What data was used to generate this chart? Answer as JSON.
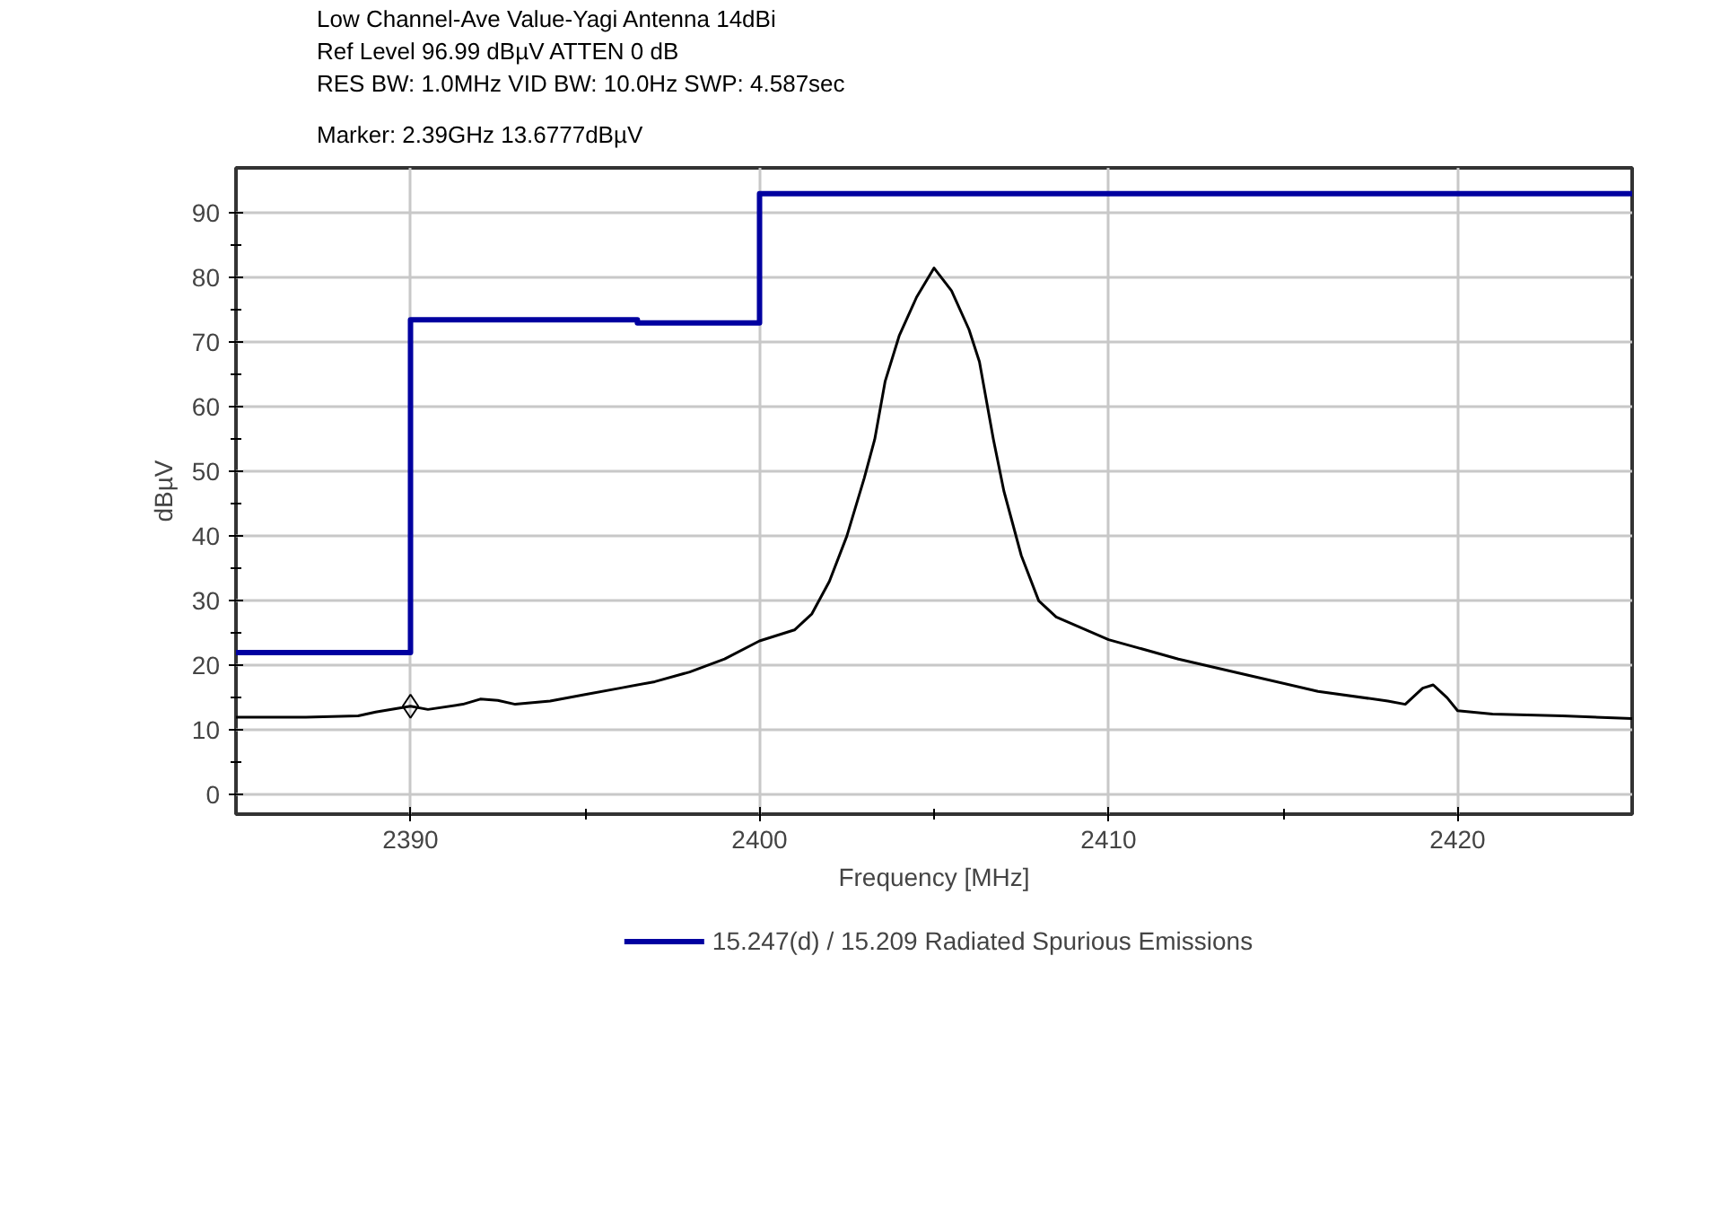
{
  "chart_data": {
    "type": "line",
    "title": "Low Channel-Ave Value-Yagi Antenna 14dBi",
    "annotations": [
      "Ref Level 96.99 dBµV    ATTEN 0 dB",
      "RES BW: 1.0MHz  VID BW: 10.0Hz  SWP: 4.587sec",
      "Marker: 2.39GHz  13.6777dBµV"
    ],
    "xlabel": "Frequency [MHz]",
    "ylabel": "dBµV",
    "xlim": [
      2385,
      2425
    ],
    "ylim": [
      -3,
      97
    ],
    "xticks": [
      2390,
      2400,
      2410,
      2420
    ],
    "yticks": [
      0,
      10,
      20,
      30,
      40,
      50,
      60,
      70,
      80,
      90
    ],
    "grid": true,
    "legend": "bottom",
    "series": [
      {
        "name": "15.247(d) / 15.209 Radiated Spurious Emissions",
        "type": "step",
        "color": "#0000a0",
        "x": [
          2385,
          2390,
          2396.5,
          2400,
          2425
        ],
        "values": [
          22,
          73.5,
          73,
          93,
          93
        ]
      },
      {
        "color": "#000000",
        "x": [
          2385,
          2387,
          2388.5,
          2389,
          2390,
          2390.5,
          2391.5,
          2392,
          2392.5,
          2393,
          2394,
          2395,
          2396,
          2397,
          2398,
          2399,
          2400,
          2401,
          2401.5,
          2402,
          2402.5,
          2403,
          2403.3,
          2403.6,
          2404,
          2404.5,
          2405,
          2405.5,
          2406,
          2406.3,
          2406.7,
          2407,
          2407.5,
          2408,
          2408.5,
          2410,
          2412,
          2414,
          2416,
          2418,
          2418.5,
          2419,
          2419.3,
          2419.7,
          2420,
          2421,
          2423,
          2425
        ],
        "values": [
          12,
          12,
          12.2,
          12.8,
          13.7,
          13.2,
          14,
          14.8,
          14.6,
          14,
          14.5,
          15.5,
          16.5,
          17.5,
          19,
          21,
          23.8,
          25.5,
          28,
          33,
          40,
          49,
          55,
          64,
          71,
          77,
          81.5,
          78,
          72,
          67,
          55,
          47,
          37,
          30,
          27.5,
          24,
          21,
          18.5,
          16,
          14.5,
          14,
          16.5,
          17,
          15,
          13,
          12.5,
          12.2,
          11.8
        ]
      },
      {
        "type": "scatter",
        "marker": "diamond",
        "color": "#000000",
        "x": [
          2390
        ],
        "values": [
          13.7
        ]
      }
    ]
  }
}
